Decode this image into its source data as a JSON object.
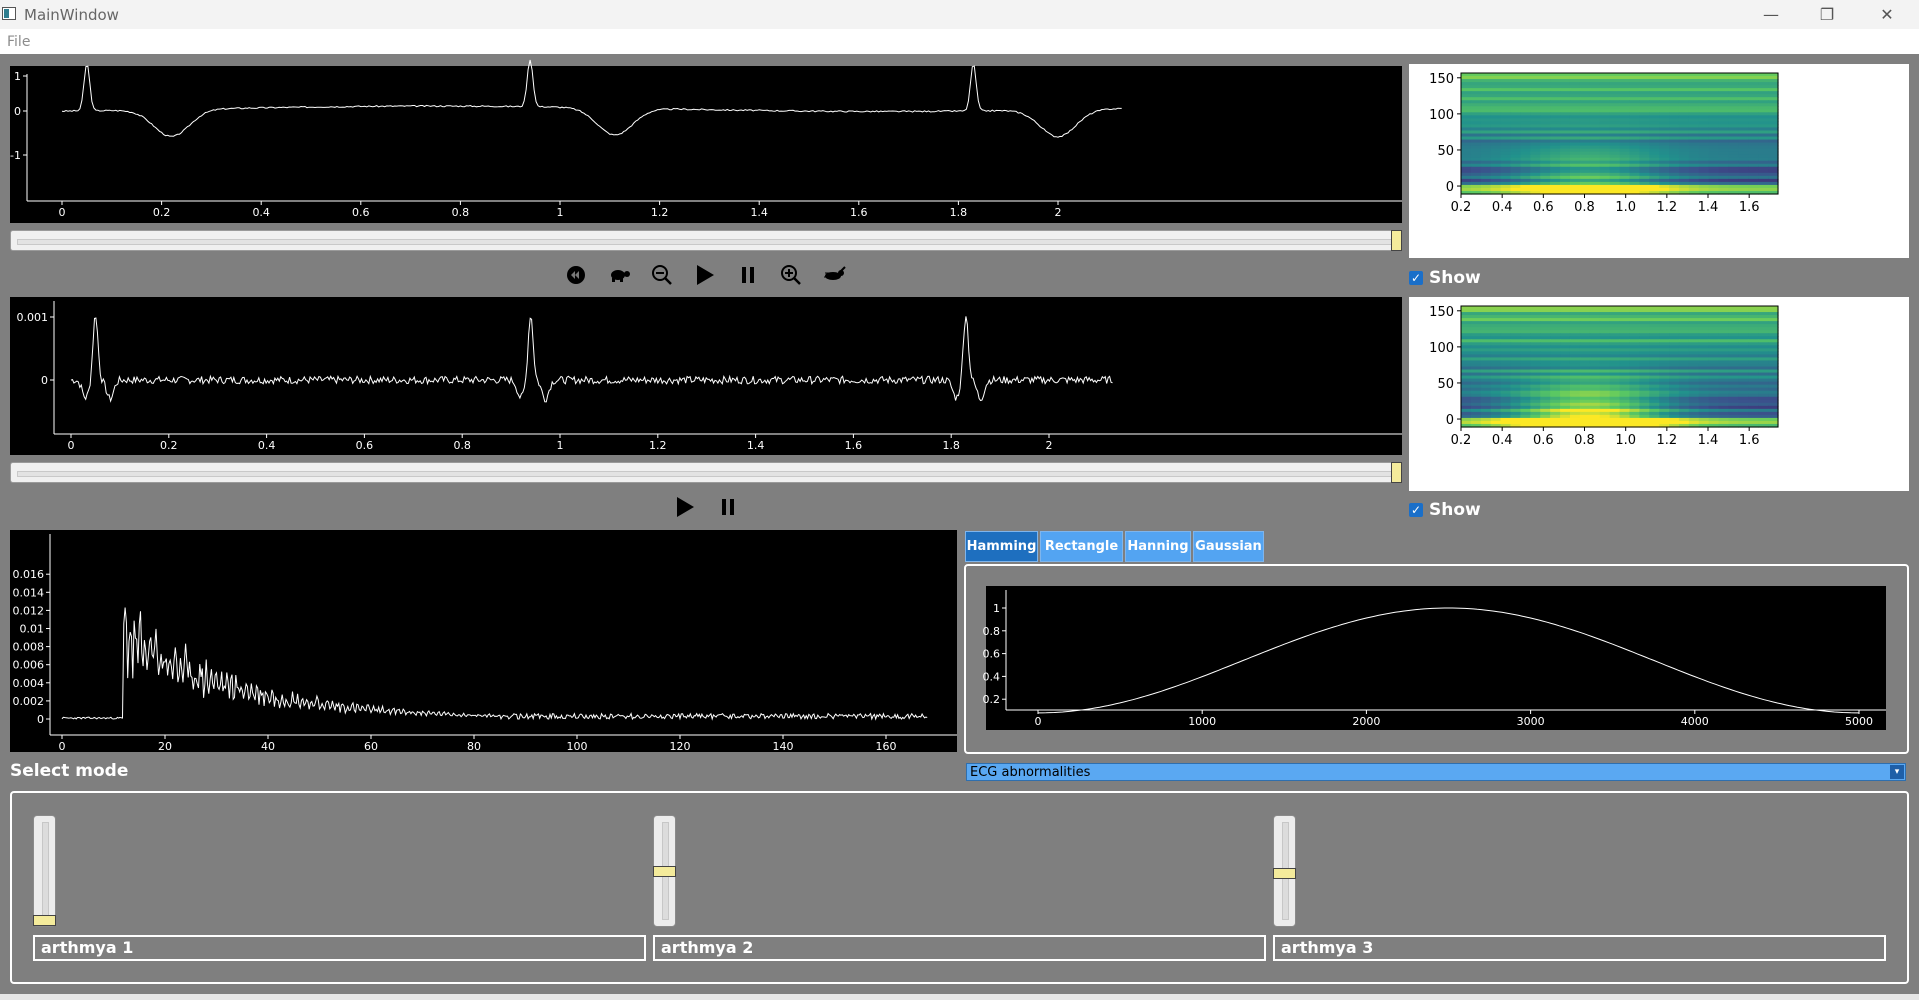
{
  "window": {
    "title": "MainWindow",
    "minimize": "—",
    "maximize": "❐",
    "close": "✕"
  },
  "menu": {
    "file": "File"
  },
  "signal1": {
    "yticks": [
      "1",
      "0",
      "-1"
    ],
    "xticks": [
      "0",
      "0.2",
      "0.4",
      "0.6",
      "0.8",
      "1",
      "1.2",
      "1.4",
      "1.6",
      "1.8",
      "2"
    ],
    "slider_value": 1.0
  },
  "signal2": {
    "yticks": [
      "0.001",
      "0"
    ],
    "xticks": [
      "0",
      "0.2",
      "0.4",
      "0.6",
      "0.8",
      "1",
      "1.2",
      "1.4",
      "1.6",
      "1.8",
      "2"
    ],
    "slider_value": 1.0
  },
  "controls1": {
    "icons": [
      "rewind-icon",
      "slow-turtle-icon",
      "zoom-out-icon",
      "play-icon",
      "pause-icon",
      "zoom-in-icon",
      "fast-rabbit-icon"
    ]
  },
  "controls2": {
    "icons": [
      "play-icon",
      "pause-icon"
    ]
  },
  "spectrogram1": {
    "yticks": [
      "150",
      "100",
      "50",
      "0"
    ],
    "xticks": [
      "0.2",
      "0.4",
      "0.6",
      "0.8",
      "1.0",
      "1.2",
      "1.4",
      "1.6"
    ],
    "show_label": "Show",
    "show_checked": true
  },
  "spectrogram2": {
    "yticks": [
      "150",
      "100",
      "50",
      "0"
    ],
    "xticks": [
      "0.2",
      "0.4",
      "0.6",
      "0.8",
      "1.0",
      "1.2",
      "1.4",
      "1.6"
    ],
    "show_label": "Show",
    "show_checked": true
  },
  "fft": {
    "yticks": [
      "0.016",
      "0.014",
      "0.012",
      "0.01",
      "0.008",
      "0.006",
      "0.004",
      "0.002",
      "0"
    ],
    "xticks": [
      "0",
      "20",
      "40",
      "60",
      "80",
      "100",
      "120",
      "140",
      "160"
    ]
  },
  "window_tabs": [
    {
      "label": "Hamming",
      "active": true
    },
    {
      "label": "Rectangle",
      "active": false
    },
    {
      "label": "Hanning",
      "active": false
    },
    {
      "label": "Gaussian",
      "active": false
    }
  ],
  "window_plot": {
    "yticks": [
      "1",
      "0.8",
      "0.6",
      "0.4",
      "0.2"
    ],
    "xticks": [
      "0",
      "1000",
      "2000",
      "3000",
      "4000",
      "5000"
    ]
  },
  "mode": {
    "label": "Select mode",
    "selected": "ECG abnormalities",
    "arrow": "▾"
  },
  "equalizer": [
    {
      "name": "arthmya 1",
      "value": 0.0
    },
    {
      "name": "arthmya 2",
      "value": 0.5
    },
    {
      "name": "arthmya 3",
      "value": 0.47
    }
  ],
  "colors": {
    "plot_bg": "#000000",
    "trace": "#ffffff",
    "handle": "#f4eb9b",
    "tab_active": "#1e6fbf",
    "tab_inactive": "#53a4f2",
    "panel_bg": "#7f7f7f"
  }
}
